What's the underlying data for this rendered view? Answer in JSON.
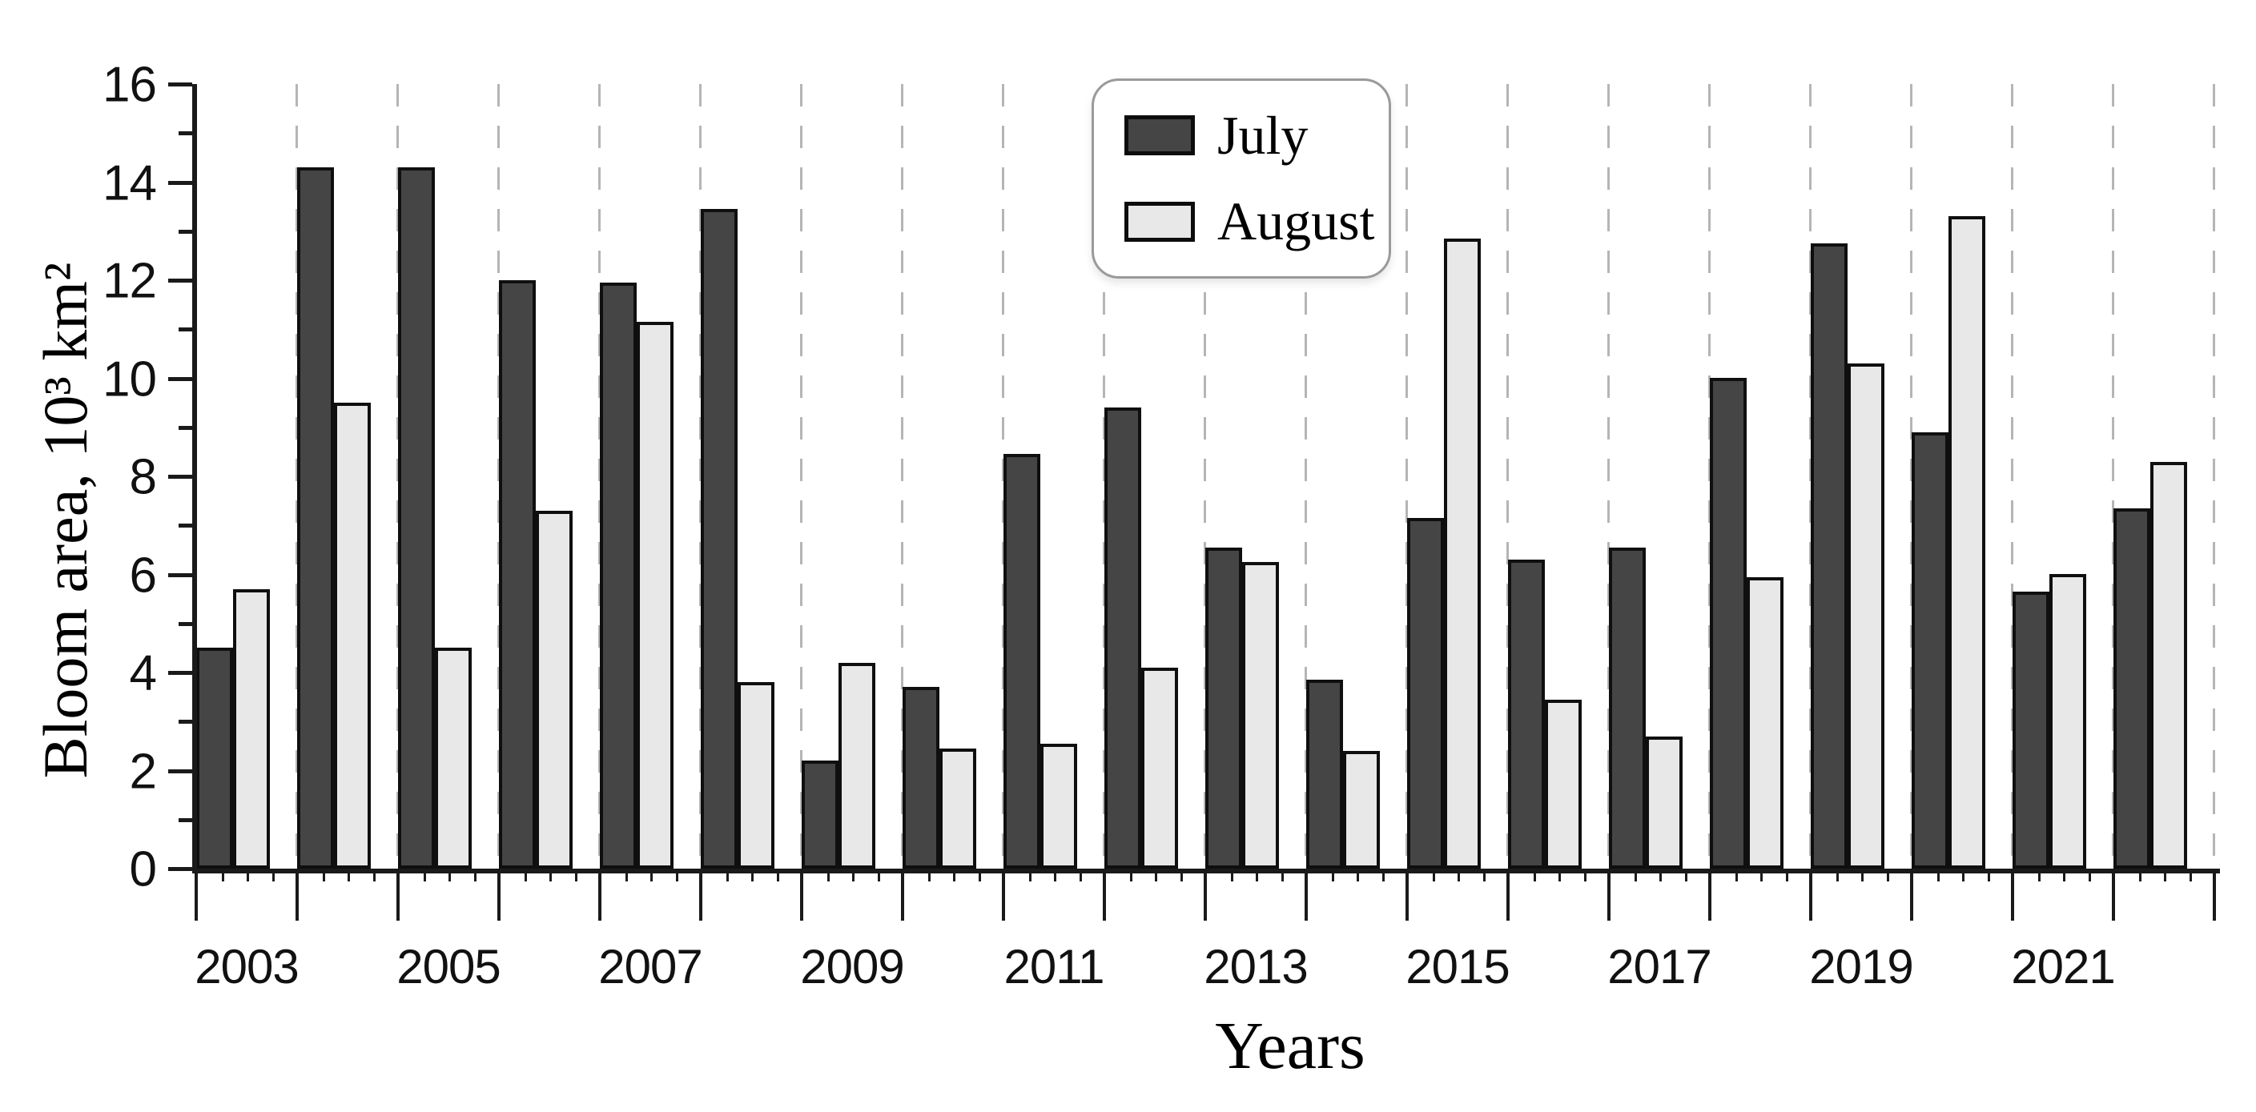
{
  "chart_data": {
    "type": "bar",
    "title": "",
    "xlabel": "Years",
    "ylabel": "Bloom area, 10³ km²",
    "categories": [
      "2003",
      "2004",
      "2005",
      "2006",
      "2007",
      "2008",
      "2009",
      "2010",
      "2011",
      "2012",
      "2013",
      "2014",
      "2015",
      "2016",
      "2017",
      "2018",
      "2019",
      "2020",
      "2021",
      "2022"
    ],
    "series": [
      {
        "name": "July",
        "values": [
          4.5,
          14.3,
          14.3,
          12.0,
          11.95,
          13.45,
          2.2,
          3.7,
          8.45,
          9.4,
          6.55,
          3.85,
          7.15,
          6.3,
          6.55,
          10.0,
          12.75,
          8.9,
          5.65,
          7.35
        ]
      },
      {
        "name": "August",
        "values": [
          5.7,
          9.5,
          4.5,
          7.3,
          11.15,
          3.8,
          4.2,
          2.45,
          2.55,
          4.1,
          6.25,
          2.4,
          12.85,
          3.45,
          2.7,
          5.95,
          10.3,
          13.3,
          6.0,
          8.3
        ]
      }
    ],
    "ylim": [
      0,
      16
    ],
    "ytick_step": 2,
    "ytick_labels": [
      "0",
      "2",
      "4",
      "6",
      "8",
      "10",
      "12",
      "14",
      "16"
    ],
    "xtick_labels": [
      "2003",
      "2005",
      "2007",
      "2009",
      "2011",
      "2013",
      "2015",
      "2017",
      "2019",
      "2021"
    ],
    "grid": "vertical-dashed-at-year-boundaries",
    "legend_position": "top-center"
  },
  "legend": {
    "items": [
      {
        "label": "July",
        "color": "#454545"
      },
      {
        "label": "August",
        "color": "#e8e8e8"
      }
    ]
  },
  "colors": {
    "july_fill": "#454545",
    "august_fill": "#e8e8e8",
    "bar_outline": "#0f0f0f",
    "axis": "#1a1a1a",
    "gridline": "#b5b5b5",
    "text": "#000000"
  }
}
